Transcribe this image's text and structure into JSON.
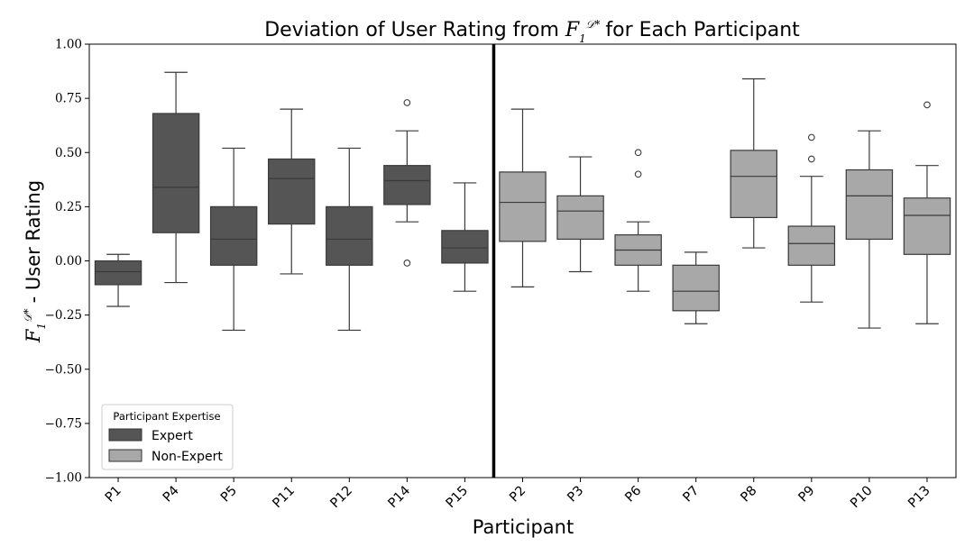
{
  "chart_data": {
    "type": "box",
    "title": {
      "text": "Deviation of User Rating from",
      "math_base": "F",
      "math_sub": "1",
      "math_sup": "𝒟*",
      "suffix": "for Each Participant"
    },
    "xlabel": "Participant",
    "ylabel": {
      "math_base": "F",
      "math_sub": "1",
      "math_sup": "𝒟*",
      "suffix": "- User Rating"
    },
    "ylim": [
      -1.0,
      1.0
    ],
    "yticks": [
      "1.00",
      "0.75",
      "0.50",
      "0.25",
      "0.00",
      "−0.25",
      "−0.50",
      "−0.75",
      "−1.00"
    ],
    "ytick_values": [
      1.0,
      0.75,
      0.5,
      0.25,
      0.0,
      -0.25,
      -0.5,
      -0.75,
      -1.0
    ],
    "divider_after_index": 6,
    "legend": {
      "title": "Participant Expertise",
      "position": "lower-left",
      "entries": [
        {
          "label": "Expert",
          "color": "#555555"
        },
        {
          "label": "Non-Expert",
          "color": "#a8a8a8"
        }
      ]
    },
    "colors": {
      "Expert": "#555555",
      "Non-Expert": "#a8a8a8"
    },
    "boxes": [
      {
        "participant": "P1",
        "group": "Expert",
        "whisker_low": -0.21,
        "q1": -0.11,
        "median": -0.05,
        "q3": 0.0,
        "whisker_high": 0.03,
        "outliers": []
      },
      {
        "participant": "P4",
        "group": "Expert",
        "whisker_low": -0.1,
        "q1": 0.13,
        "median": 0.34,
        "q3": 0.68,
        "whisker_high": 0.87,
        "outliers": []
      },
      {
        "participant": "P5",
        "group": "Expert",
        "whisker_low": -0.32,
        "q1": -0.02,
        "median": 0.1,
        "q3": 0.25,
        "whisker_high": 0.52,
        "outliers": []
      },
      {
        "participant": "P11",
        "group": "Expert",
        "whisker_low": -0.06,
        "q1": 0.17,
        "median": 0.38,
        "q3": 0.47,
        "whisker_high": 0.7,
        "outliers": []
      },
      {
        "participant": "P12",
        "group": "Expert",
        "whisker_low": -0.32,
        "q1": -0.02,
        "median": 0.1,
        "q3": 0.25,
        "whisker_high": 0.52,
        "outliers": []
      },
      {
        "participant": "P14",
        "group": "Expert",
        "whisker_low": 0.18,
        "q1": 0.26,
        "median": 0.37,
        "q3": 0.44,
        "whisker_high": 0.6,
        "outliers": [
          0.73,
          -0.01
        ]
      },
      {
        "participant": "P15",
        "group": "Expert",
        "whisker_low": -0.14,
        "q1": -0.01,
        "median": 0.06,
        "q3": 0.14,
        "whisker_high": 0.36,
        "outliers": []
      },
      {
        "participant": "P2",
        "group": "Non-Expert",
        "whisker_low": -0.12,
        "q1": 0.09,
        "median": 0.27,
        "q3": 0.41,
        "whisker_high": 0.7,
        "outliers": []
      },
      {
        "participant": "P3",
        "group": "Non-Expert",
        "whisker_low": -0.05,
        "q1": 0.1,
        "median": 0.23,
        "q3": 0.3,
        "whisker_high": 0.48,
        "outliers": []
      },
      {
        "participant": "P6",
        "group": "Non-Expert",
        "whisker_low": -0.14,
        "q1": -0.02,
        "median": 0.05,
        "q3": 0.12,
        "whisker_high": 0.18,
        "outliers": [
          0.5,
          0.4
        ]
      },
      {
        "participant": "P7",
        "group": "Non-Expert",
        "whisker_low": -0.29,
        "q1": -0.23,
        "median": -0.14,
        "q3": -0.02,
        "whisker_high": 0.04,
        "outliers": []
      },
      {
        "participant": "P8",
        "group": "Non-Expert",
        "whisker_low": 0.06,
        "q1": 0.2,
        "median": 0.39,
        "q3": 0.51,
        "whisker_high": 0.84,
        "outliers": []
      },
      {
        "participant": "P9",
        "group": "Non-Expert",
        "whisker_low": -0.19,
        "q1": -0.02,
        "median": 0.08,
        "q3": 0.16,
        "whisker_high": 0.39,
        "outliers": [
          0.57,
          0.47
        ]
      },
      {
        "participant": "P10",
        "group": "Non-Expert",
        "whisker_low": -0.31,
        "q1": 0.1,
        "median": 0.3,
        "q3": 0.42,
        "whisker_high": 0.6,
        "outliers": []
      },
      {
        "participant": "P13",
        "group": "Non-Expert",
        "whisker_low": -0.29,
        "q1": 0.03,
        "median": 0.21,
        "q3": 0.29,
        "whisker_high": 0.44,
        "outliers": [
          0.72
        ]
      }
    ]
  }
}
